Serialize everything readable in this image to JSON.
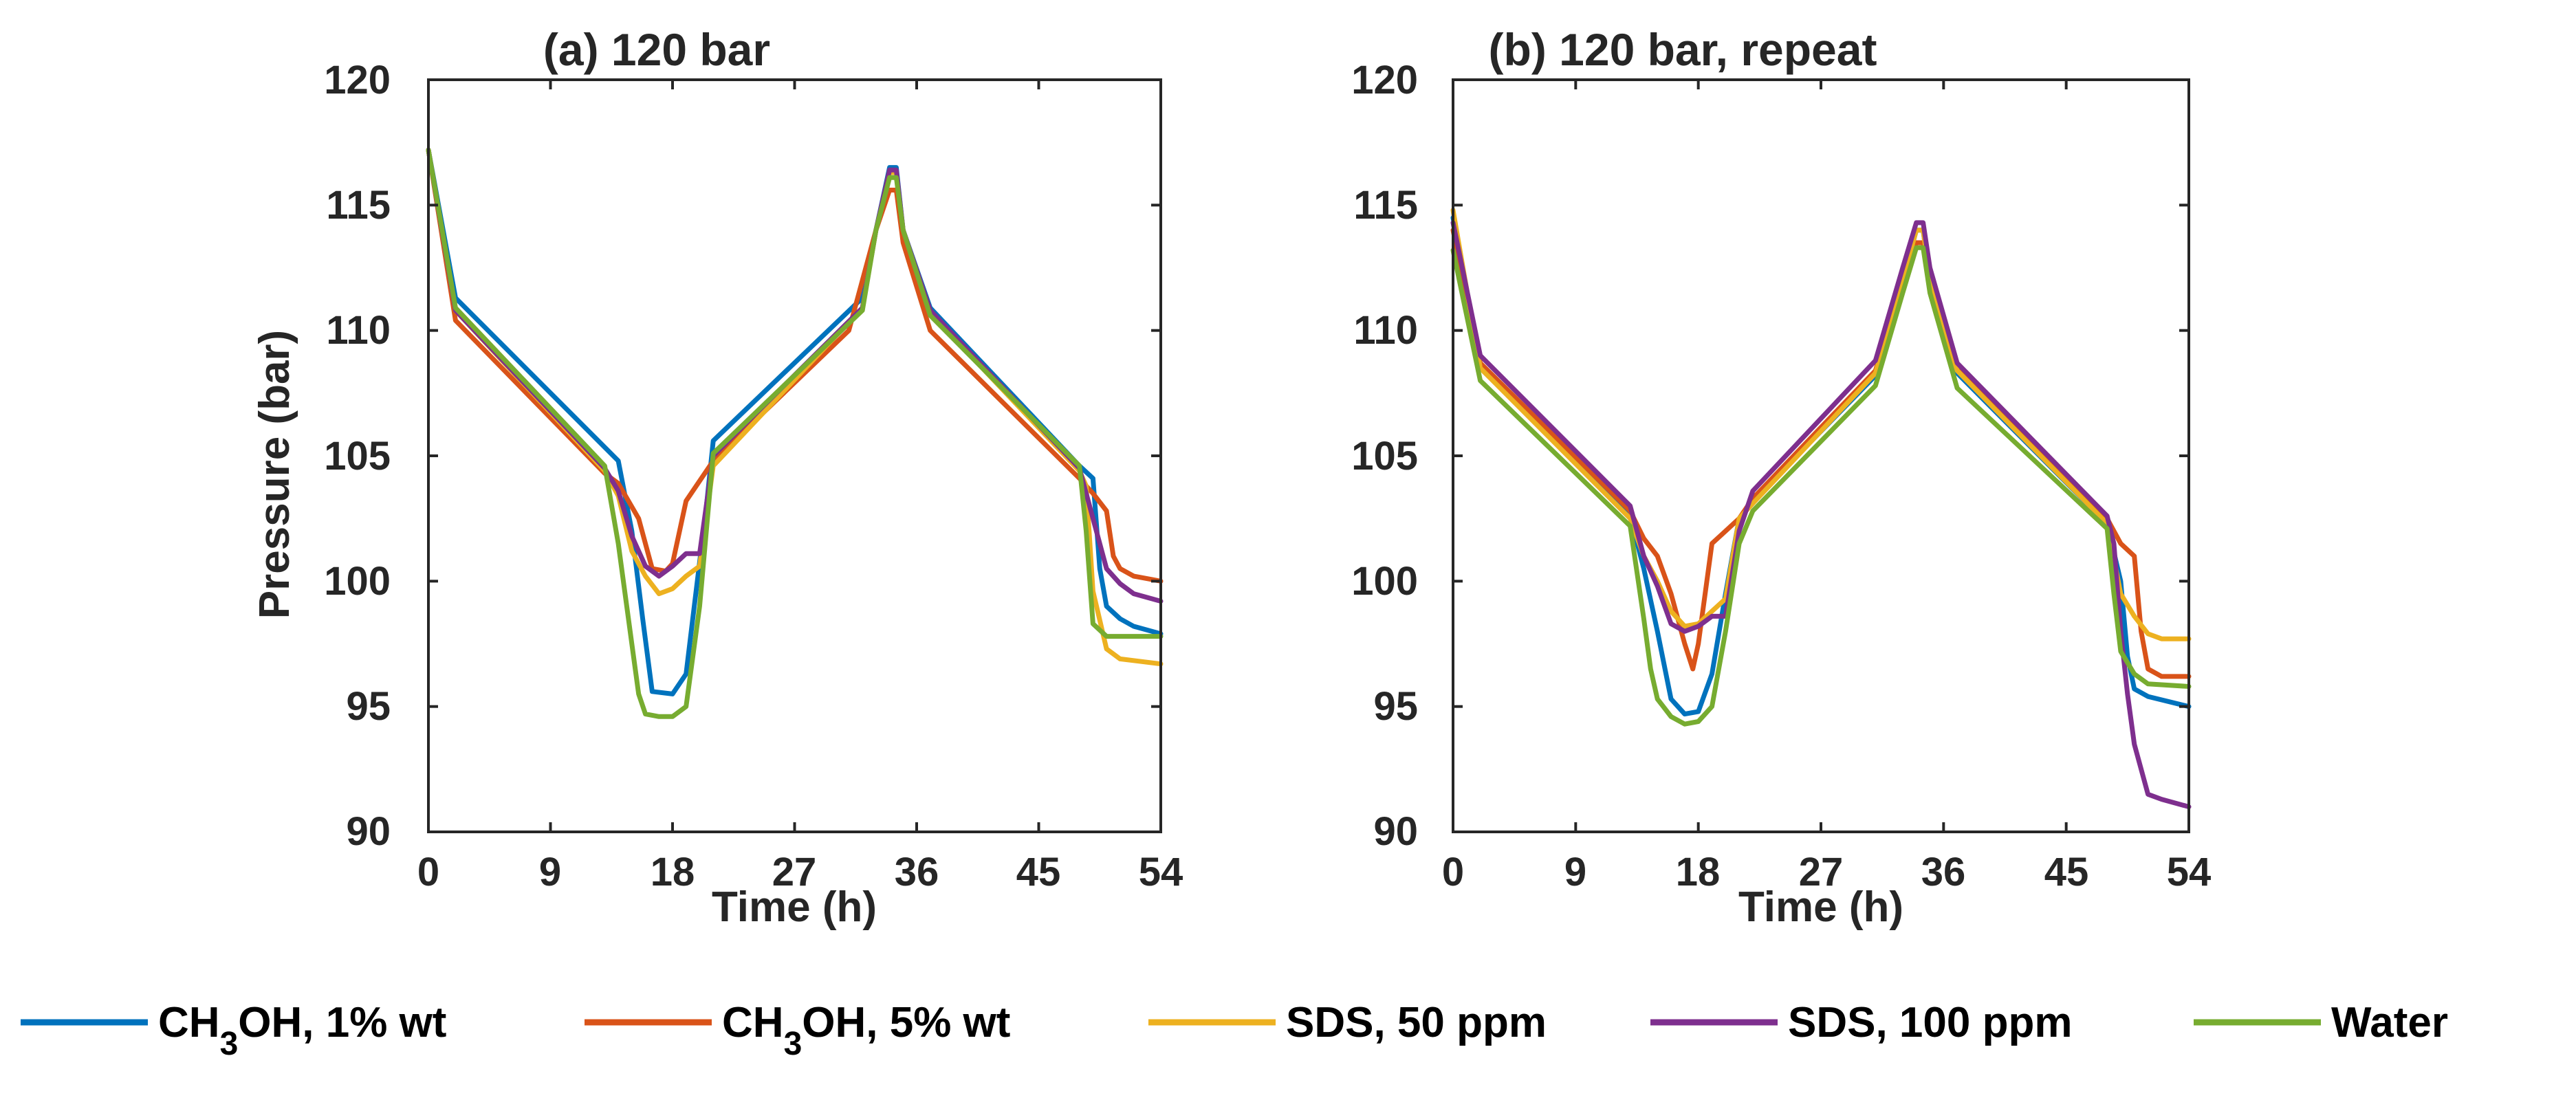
{
  "chart_data": [
    {
      "type": "line",
      "title": "(a) 120 bar",
      "xlabel": "Time (h)",
      "ylabel": "Pressure (bar)",
      "xlim": [
        0,
        54
      ],
      "ylim": [
        90,
        120
      ],
      "xticks": [
        "0",
        "9",
        "18",
        "27",
        "36",
        "45",
        "54"
      ],
      "yticks": [
        "90",
        "95",
        "100",
        "105",
        "110",
        "115",
        "120"
      ],
      "grid": false,
      "series": [
        {
          "name": "CH3OH, 1% wt",
          "color": "#0072BD",
          "x": [
            0,
            2,
            14,
            15,
            15.8,
            16.5,
            18,
            19,
            19.6,
            20.5,
            21,
            32,
            33,
            34,
            34.5,
            35,
            37,
            48,
            49,
            49.5,
            50,
            51,
            52,
            54
          ],
          "y": [
            117.2,
            111.3,
            104.8,
            102,
            98.5,
            95.6,
            95.5,
            96.3,
            99,
            103,
            105.6,
            111.3,
            114,
            116.5,
            116.5,
            114,
            110.9,
            104.6,
            104.1,
            100.5,
            99,
            98.5,
            98.2,
            97.9
          ]
        },
        {
          "name": "CH3OH, 5% wt",
          "color": "#D95319",
          "x": [
            0,
            2,
            13,
            14,
            15.5,
            16.5,
            17.5,
            18,
            19,
            21,
            31,
            33,
            34,
            34.5,
            35,
            37,
            48,
            49,
            50,
            50.5,
            51,
            52,
            54
          ],
          "y": [
            117.2,
            110.4,
            104.3,
            103.9,
            102.5,
            100.5,
            100.4,
            100.7,
            103.2,
            104.8,
            110,
            114,
            115.6,
            115.6,
            113.5,
            110,
            104.1,
            103.5,
            102.8,
            101,
            100.5,
            100.2,
            100
          ]
        },
        {
          "name": "SDS, 50 ppm",
          "color": "#EDB120",
          "x": [
            0,
            2,
            13,
            14,
            15,
            16,
            17,
            18,
            19,
            20,
            21,
            32,
            33,
            34,
            34.5,
            35,
            37,
            48,
            48.5,
            49,
            50,
            51,
            54
          ],
          "y": [
            117.2,
            110.8,
            104.4,
            103.4,
            101.2,
            100.2,
            99.5,
            99.7,
            100.2,
            100.6,
            104.6,
            110.9,
            114,
            116.3,
            116.3,
            114,
            110.7,
            104.4,
            103.8,
            99.6,
            97.3,
            96.9,
            96.7
          ]
        },
        {
          "name": "SDS, 100 ppm",
          "color": "#7E2F8E",
          "x": [
            0,
            2,
            13,
            14,
            15,
            16,
            17,
            18,
            19,
            20,
            21,
            32,
            33,
            34,
            34.5,
            35,
            37,
            48,
            49,
            50,
            51,
            52,
            54
          ],
          "y": [
            117.2,
            110.8,
            104.5,
            103.6,
            101.8,
            100.6,
            100.2,
            100.6,
            101.1,
            101.1,
            105,
            110.9,
            114,
            116.4,
            116.4,
            114,
            110.8,
            104.5,
            102.5,
            100.5,
            99.9,
            99.5,
            99.2
          ]
        },
        {
          "name": "Water",
          "color": "#77AC30",
          "x": [
            0,
            2,
            13,
            14,
            15,
            15.5,
            16,
            17,
            18,
            19,
            20,
            21,
            32,
            33,
            34,
            34.5,
            35,
            37,
            48,
            48.5,
            49,
            50,
            51,
            54
          ],
          "y": [
            117.2,
            110.9,
            104.6,
            101.5,
            97.5,
            95.5,
            94.7,
            94.6,
            94.6,
            95,
            99,
            105.1,
            110.8,
            114,
            116.1,
            116.1,
            114,
            110.6,
            104.6,
            102,
            98.3,
            97.8,
            97.8,
            97.8
          ]
        }
      ]
    },
    {
      "type": "line",
      "title": "(b) 120 bar, repeat",
      "xlabel": "Time (h)",
      "ylabel": "",
      "xlim": [
        0,
        54
      ],
      "ylim": [
        90,
        120
      ],
      "xticks": [
        "0",
        "9",
        "18",
        "27",
        "36",
        "45",
        "54"
      ],
      "yticks": [
        "90",
        "95",
        "100",
        "105",
        "110",
        "115",
        "120"
      ],
      "grid": false,
      "series": [
        {
          "name": "CH3OH, 1% wt",
          "color": "#0072BD",
          "x": [
            0,
            2,
            13,
            14,
            15,
            16,
            17,
            18,
            19,
            20,
            21,
            22,
            31,
            33,
            34,
            34.5,
            35,
            37,
            48,
            49,
            49.5,
            50,
            51,
            54
          ],
          "y": [
            114.5,
            108.5,
            102.6,
            100.5,
            98,
            95.3,
            94.7,
            94.8,
            96.3,
            99.5,
            102.5,
            103.2,
            108.2,
            112,
            114,
            114,
            112,
            108.3,
            102.3,
            100,
            97,
            95.7,
            95.4,
            95
          ]
        },
        {
          "name": "CH3OH, 5% wt",
          "color": "#D95319",
          "x": [
            0,
            2,
            13,
            14,
            15,
            16,
            17,
            17.6,
            18,
            19,
            20,
            21,
            22,
            31,
            33,
            34,
            34.5,
            35,
            37,
            48,
            49,
            50,
            50.5,
            51,
            52,
            54
          ],
          "y": [
            114,
            108.7,
            102.8,
            101.7,
            101,
            99.5,
            97.5,
            96.5,
            97.5,
            101.5,
            102,
            102.5,
            103.3,
            108.4,
            112,
            113.5,
            113.5,
            112,
            108.6,
            102.5,
            101.5,
            101,
            98,
            96.5,
            96.2,
            96.2
          ]
        },
        {
          "name": "SDS, 50 ppm",
          "color": "#EDB120",
          "x": [
            0,
            2,
            13,
            14,
            15,
            16,
            17,
            18,
            19,
            20,
            21,
            22,
            31,
            33,
            34,
            34.5,
            35,
            37,
            48,
            49,
            50,
            51,
            52,
            54
          ],
          "y": [
            114.8,
            108.5,
            102.5,
            101,
            100,
            98.8,
            98.2,
            98.3,
            98.8,
            99.3,
            102.5,
            103.1,
            108.3,
            112,
            114,
            114,
            112,
            108.4,
            102.3,
            99.5,
            98.6,
            97.9,
            97.7,
            97.7
          ]
        },
        {
          "name": "SDS, 100 ppm",
          "color": "#7E2F8E",
          "x": [
            0,
            2,
            13,
            14,
            15,
            16,
            17,
            18,
            19,
            20,
            21,
            22,
            31,
            33,
            34,
            34.5,
            35,
            37,
            48,
            48.5,
            49,
            49.5,
            50,
            51,
            52,
            54
          ],
          "y": [
            114.3,
            109,
            103,
            101,
            99.8,
            98.3,
            98,
            98.2,
            98.6,
            98.6,
            102,
            103.6,
            108.8,
            112.5,
            114.3,
            114.3,
            112.5,
            108.7,
            102.6,
            101.5,
            98,
            95.5,
            93.5,
            91.5,
            91.3,
            91
          ]
        },
        {
          "name": "Water",
          "color": "#77AC30",
          "x": [
            0,
            2,
            13,
            14,
            14.5,
            15,
            16,
            17,
            18,
            19,
            20,
            21,
            22,
            31,
            33,
            34,
            34.5,
            35,
            37,
            48,
            48.5,
            49,
            50,
            51,
            54
          ],
          "y": [
            113.2,
            108,
            102.2,
            98.5,
            96.5,
            95.3,
            94.6,
            94.3,
            94.4,
            95,
            98,
            101.5,
            102.8,
            107.8,
            111.5,
            113.3,
            113.3,
            111.5,
            107.7,
            102.1,
            99.5,
            97.2,
            96.3,
            95.9,
            95.8
          ]
        }
      ]
    }
  ],
  "legend": {
    "position": "bottom",
    "entries": [
      {
        "main": "CH",
        "sub": "3",
        "rest": "OH, 1% wt",
        "color": "#0072BD"
      },
      {
        "main": "CH",
        "sub": "3",
        "rest": "OH, 5% wt",
        "color": "#D95319"
      },
      {
        "main": "SDS, 50 ppm",
        "sub": "",
        "rest": "",
        "color": "#EDB120"
      },
      {
        "main": "SDS, 100 ppm",
        "sub": "",
        "rest": "",
        "color": "#7E2F8E"
      },
      {
        "main": "Water",
        "sub": "",
        "rest": "",
        "color": "#77AC30"
      }
    ]
  }
}
